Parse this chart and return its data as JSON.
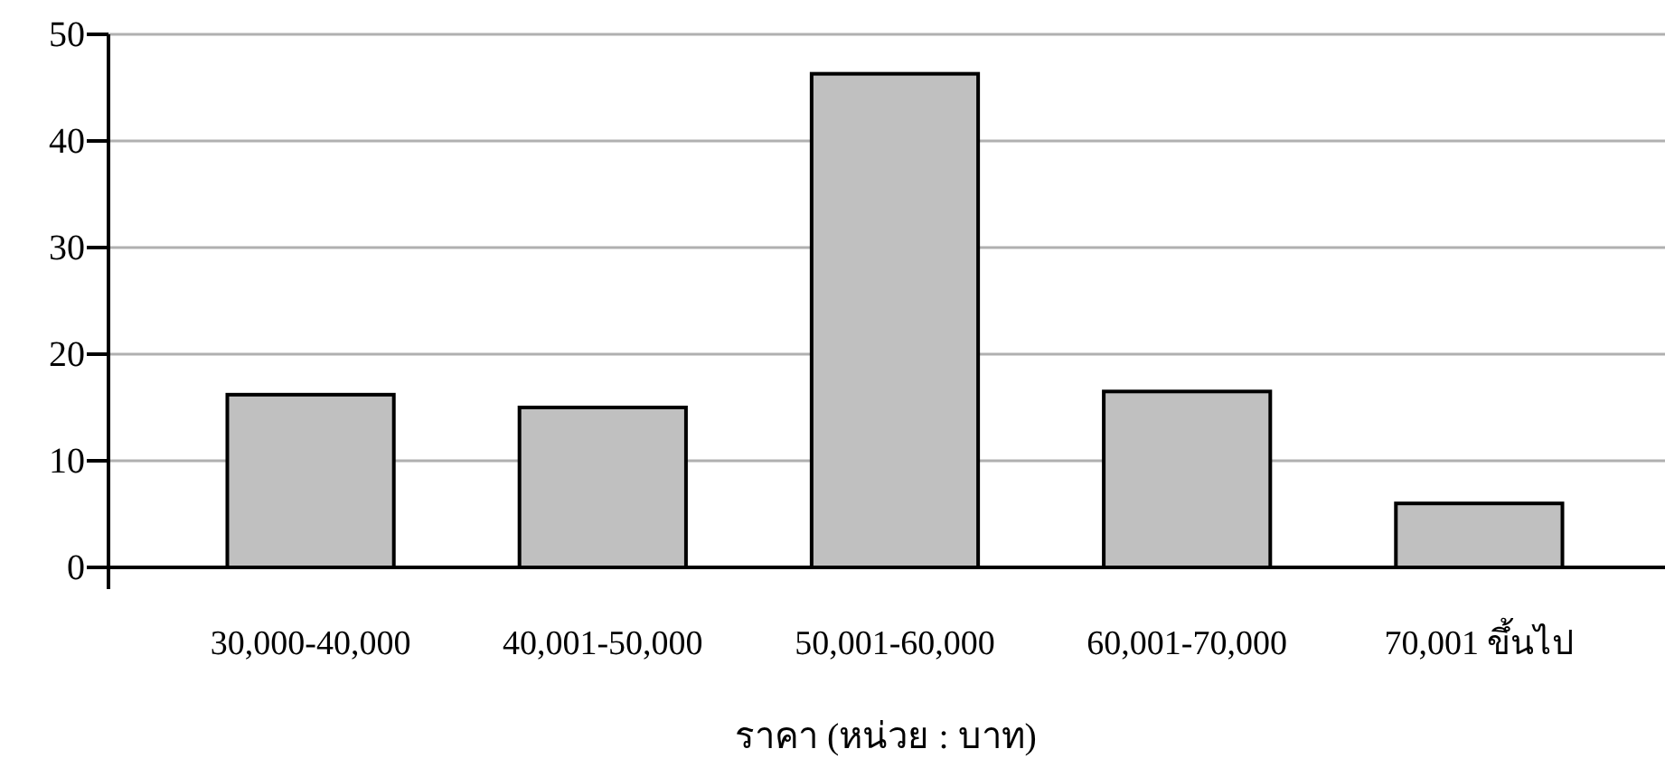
{
  "chart_data": {
    "type": "bar",
    "categories": [
      "30,000-40,000",
      "40,001-50,000",
      "50,001-60,000",
      "60,001-70,000",
      "70,001 ขึ้นไป"
    ],
    "values": [
      16.2,
      15.0,
      46.3,
      16.5,
      6.0
    ],
    "color": "#c0c0c0",
    "xlabel": "ราคา (หน่วย : บาท)",
    "ylim": [
      0,
      50
    ],
    "yticks": [
      0,
      10,
      20,
      30,
      40,
      50
    ],
    "grid": "y"
  }
}
